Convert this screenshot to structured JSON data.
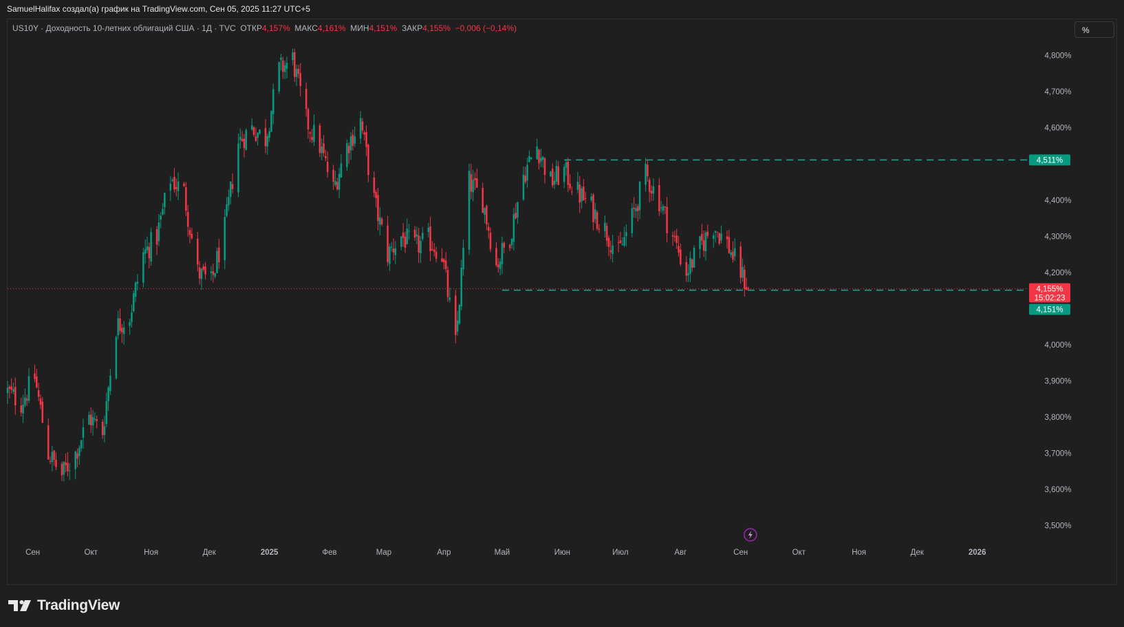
{
  "header": {
    "text": "SamuelHalifax создал(а) график на TradingView.com, Сен 05, 2025 11:27 UTC+5"
  },
  "legend": {
    "symbol": "US10Y · Доходность 10-летних облигаций США · 1Д · TVC",
    "open_label": "ОТКР",
    "open_value": "4,157%",
    "high_label": "МАКС",
    "high_value": "4,161%",
    "low_label": "МИН",
    "low_value": "4,151%",
    "close_label": "ЗАКР",
    "close_value": "4,155%",
    "change": "−0,006 (−0,14%)"
  },
  "unit_button": {
    "label": "%"
  },
  "footer": {
    "brand": "TradingView"
  },
  "colors": {
    "up": "#089981",
    "down": "#f23645",
    "background": "#1f1f1f",
    "level_line": "#26a69a"
  },
  "price_tags": {
    "current_value": "4,155%",
    "countdown": "15:02:23",
    "level_upper": "4,511%",
    "level_lower": "4,151%"
  },
  "chart_data": {
    "type": "candlestick",
    "symbol": "US10Y",
    "interval": "1D",
    "y_axis": {
      "side": "right",
      "range": [
        3.45,
        4.9
      ],
      "ticks": [
        3.5,
        3.6,
        3.7,
        3.8,
        3.9,
        4.0,
        4.2,
        4.3,
        4.4,
        4.6,
        4.7,
        4.8
      ],
      "tick_labels": [
        "3,500%",
        "3,600%",
        "3,700%",
        "3,800%",
        "3,900%",
        "4,000%",
        "4,200%",
        "4,300%",
        "4,400%",
        "4,600%",
        "4,700%",
        "4,800%"
      ]
    },
    "x_axis": {
      "range": [
        "2024-08-19",
        "2026-01-27"
      ],
      "labels": [
        {
          "date": "2024-09-01",
          "text": "Сен",
          "bold": false
        },
        {
          "date": "2024-10-01",
          "text": "Окт",
          "bold": false
        },
        {
          "date": "2024-11-01",
          "text": "Ноя",
          "bold": false
        },
        {
          "date": "2024-12-01",
          "text": "Дек",
          "bold": false
        },
        {
          "date": "2025-01-01",
          "text": "2025",
          "bold": true
        },
        {
          "date": "2025-02-01",
          "text": "Фев",
          "bold": false
        },
        {
          "date": "2025-03-01",
          "text": "Мар",
          "bold": false
        },
        {
          "date": "2025-04-01",
          "text": "Апр",
          "bold": false
        },
        {
          "date": "2025-05-01",
          "text": "Май",
          "bold": false
        },
        {
          "date": "2025-06-01",
          "text": "Июн",
          "bold": false
        },
        {
          "date": "2025-07-01",
          "text": "Июл",
          "bold": false
        },
        {
          "date": "2025-08-01",
          "text": "Авг",
          "bold": false
        },
        {
          "date": "2025-09-01",
          "text": "Сен",
          "bold": false
        },
        {
          "date": "2025-10-01",
          "text": "Окт",
          "bold": false
        },
        {
          "date": "2025-11-01",
          "text": "Ноя",
          "bold": false
        },
        {
          "date": "2025-12-01",
          "text": "Дек",
          "bold": false
        },
        {
          "date": "2026-01-01",
          "text": "2026",
          "bold": true
        }
      ]
    },
    "close_path": [
      [
        "2024-08-19",
        3.87
      ],
      [
        "2024-08-26",
        3.84
      ],
      [
        "2024-09-02",
        3.91
      ],
      [
        "2024-09-09",
        3.7
      ],
      [
        "2024-09-16",
        3.64
      ],
      [
        "2024-09-23",
        3.7
      ],
      [
        "2024-09-30",
        3.8
      ],
      [
        "2024-10-07",
        3.76
      ],
      [
        "2024-10-14",
        4.05
      ],
      [
        "2024-10-21",
        4.08
      ],
      [
        "2024-10-28",
        4.25
      ],
      [
        "2024-11-04",
        4.3
      ],
      [
        "2024-11-11",
        4.46
      ],
      [
        "2024-11-18",
        4.42
      ],
      [
        "2024-11-25",
        4.2
      ],
      [
        "2024-12-02",
        4.17
      ],
      [
        "2024-12-09",
        4.32
      ],
      [
        "2024-12-16",
        4.56
      ],
      [
        "2024-12-23",
        4.6
      ],
      [
        "2024-12-30",
        4.57
      ],
      [
        "2025-01-06",
        4.76
      ],
      [
        "2025-01-13",
        4.79
      ],
      [
        "2025-01-20",
        4.62
      ],
      [
        "2025-01-27",
        4.55
      ],
      [
        "2025-02-03",
        4.43
      ],
      [
        "2025-02-10",
        4.55
      ],
      [
        "2025-02-17",
        4.62
      ],
      [
        "2025-02-24",
        4.4
      ],
      [
        "2025-03-03",
        4.25
      ],
      [
        "2025-03-10",
        4.3
      ],
      [
        "2025-03-17",
        4.27
      ],
      [
        "2025-03-24",
        4.29
      ],
      [
        "2025-03-31",
        4.25
      ],
      [
        "2025-04-07",
        4.0
      ],
      [
        "2025-04-14",
        4.45
      ],
      [
        "2025-04-21",
        4.4
      ],
      [
        "2025-04-28",
        4.22
      ],
      [
        "2025-05-05",
        4.3
      ],
      [
        "2025-05-12",
        4.47
      ],
      [
        "2025-05-19",
        4.55
      ],
      [
        "2025-05-26",
        4.45
      ],
      [
        "2025-06-02",
        4.48
      ],
      [
        "2025-06-09",
        4.42
      ],
      [
        "2025-06-16",
        4.38
      ],
      [
        "2025-06-23",
        4.32
      ],
      [
        "2025-06-30",
        4.25
      ],
      [
        "2025-07-07",
        4.35
      ],
      [
        "2025-07-14",
        4.47
      ],
      [
        "2025-07-21",
        4.4
      ],
      [
        "2025-07-28",
        4.3
      ],
      [
        "2025-08-04",
        4.2
      ],
      [
        "2025-08-11",
        4.27
      ],
      [
        "2025-08-18",
        4.33
      ],
      [
        "2025-08-25",
        4.28
      ],
      [
        "2025-09-01",
        4.2
      ],
      [
        "2025-09-05",
        4.155
      ]
    ],
    "last_candle": {
      "date": "2025-09-05",
      "open": 4.157,
      "high": 4.161,
      "low": 4.151,
      "close": 4.155
    },
    "horizontal_levels": [
      {
        "value": 4.511,
        "from": "2025-06-02",
        "style": "dashed"
      },
      {
        "value": 4.151,
        "from": "2025-05-01",
        "style": "dashed"
      }
    ],
    "current_price_line": 4.155,
    "event_marker": {
      "date": "2025-09-06",
      "icon": "lightning-icon"
    }
  }
}
